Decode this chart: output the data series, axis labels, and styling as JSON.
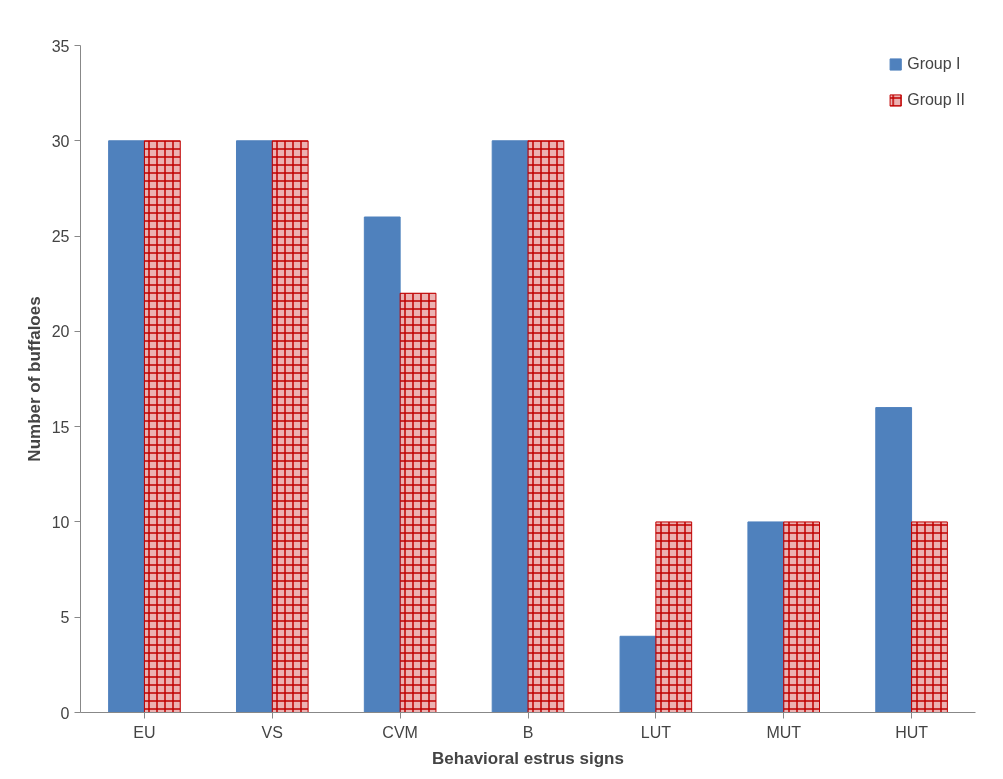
{
  "chart_data": {
    "type": "bar",
    "xlabel": "Behavioral estrus signs",
    "ylabel": "Number of buffaloes",
    "categories": [
      "EU",
      "VS",
      "CVM",
      "B",
      "LUT",
      "MUT",
      "HUT"
    ],
    "series": [
      {
        "name": "Group I",
        "color": "#4f81bd",
        "values": [
          30,
          30,
          26,
          30,
          4,
          10,
          16
        ]
      },
      {
        "name": "Group II",
        "color": "#c00000",
        "values": [
          30,
          30,
          22,
          30,
          10,
          10,
          10
        ]
      }
    ],
    "ylim": [
      0,
      35
    ],
    "yticks": [
      0,
      5,
      10,
      15,
      20,
      25,
      30,
      35
    ],
    "grid": false,
    "legend": "top right"
  }
}
